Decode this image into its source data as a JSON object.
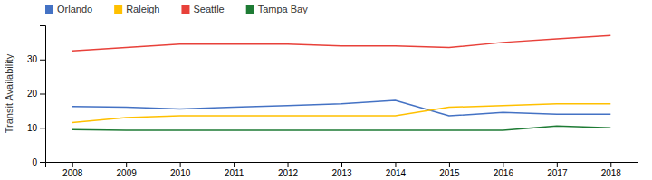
{
  "chart_data": {
    "type": "line",
    "y_label": "Transit Availability",
    "x": [
      2008,
      2009,
      2010,
      2011,
      2012,
      2013,
      2014,
      2015,
      2016,
      2017,
      2018
    ],
    "series": [
      {
        "name": "Orlando",
        "color": "#4472C4",
        "values": [
          16.2,
          16.0,
          15.5,
          16.0,
          16.5,
          17.0,
          18.0,
          13.5,
          14.5,
          14.0,
          14.0
        ]
      },
      {
        "name": "Raleigh",
        "color": "#FFC000",
        "values": [
          11.5,
          13.0,
          13.5,
          13.5,
          13.5,
          13.5,
          13.5,
          16.0,
          16.5,
          17.0,
          17.0
        ]
      },
      {
        "name": "Seattle",
        "color": "#E8413A",
        "values": [
          32.5,
          33.5,
          34.5,
          34.5,
          34.5,
          34.0,
          34.0,
          33.5,
          35.0,
          36.0,
          37.0
        ]
      },
      {
        "name": "Tampa Bay",
        "color": "#1E7B34",
        "values": [
          9.5,
          9.3,
          9.3,
          9.3,
          9.3,
          9.3,
          9.3,
          9.3,
          9.3,
          10.5,
          10.0
        ]
      }
    ],
    "xlim": [
      2007.5,
      2018.5
    ],
    "xticks": [
      2008,
      2009,
      2010,
      2011,
      2012,
      2013,
      2014,
      2015,
      2016,
      2017,
      2018
    ],
    "ylim": [
      0,
      40
    ],
    "yticks": [
      0,
      10,
      20,
      30
    ],
    "grid": false,
    "legend": "upper left"
  }
}
